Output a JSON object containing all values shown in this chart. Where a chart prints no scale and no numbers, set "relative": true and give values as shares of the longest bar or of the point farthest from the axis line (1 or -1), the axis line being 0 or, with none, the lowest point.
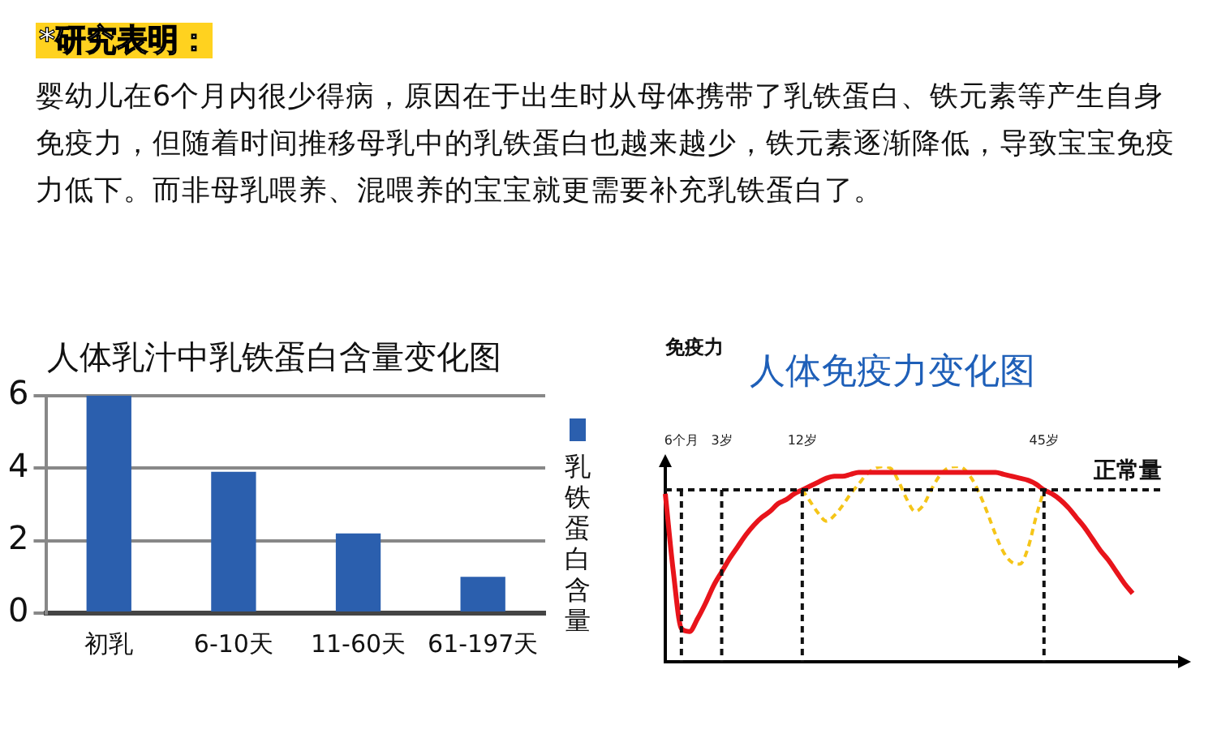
{
  "chart_data": [
    {
      "type": "other",
      "title": "*研究表明：",
      "annotations": [
        "婴幼儿在6个月内很少得病，原因在于出生时从母体携带了乳铁蛋白、铁元素等产生自身免疫力，但随着时间推移母乳中的乳铁蛋白也越来越少，铁元素逐渐降低，导致宝宝免疫力低下。而非母乳喂养、混喂养的宝宝就更需要补充乳铁蛋白了。"
      ]
    },
    {
      "type": "bar",
      "title": "人体乳汁中乳铁蛋白含量变化图",
      "categories": [
        "初乳",
        "6-10天",
        "11-60天",
        "61-197天"
      ],
      "series": [
        {
          "name": "乳铁蛋白含量",
          "color": "#2b5fae",
          "values": [
            6,
            3.9,
            2.2,
            1.0
          ]
        }
      ],
      "ylim": [
        0,
        6
      ],
      "yticks": [
        0,
        2,
        4,
        6
      ],
      "grid": "y",
      "legend": "right"
    },
    {
      "type": "line",
      "title": "人体免疫力变化图",
      "ylabel": "免疫力",
      "relative": true,
      "marker": "none",
      "categories": [
        null,
        null,
        "6个月",
        null,
        null,
        null,
        null,
        "3岁",
        null,
        null,
        null,
        null,
        null,
        null,
        null,
        null,
        null,
        "12岁",
        null,
        null,
        null,
        null,
        null,
        null,
        null,
        null,
        null,
        null,
        null,
        null,
        null,
        null,
        null,
        null,
        null,
        null,
        null,
        null,
        null,
        null,
        null,
        null,
        null,
        null,
        null,
        null,
        null,
        "45岁",
        null,
        null,
        null,
        null,
        null,
        null,
        null,
        null,
        null,
        null,
        null
      ],
      "series": [
        {
          "color": "#e8141b",
          "line_style": "solid",
          "values": [
            0.86,
            0.46,
            0.17,
            0.155,
            0.22,
            0.3,
            0.39,
            0.46,
            0.53,
            0.59,
            0.65,
            0.7,
            0.74,
            0.77,
            0.81,
            0.83,
            0.86,
            0.88,
            0.9,
            0.92,
            0.94,
            0.95,
            0.95,
            0.96,
            0.97,
            0.97,
            0.97,
            0.97,
            0.97,
            0.97,
            0.97,
            0.97,
            0.97,
            0.97,
            0.97,
            0.97,
            0.97,
            0.97,
            0.97,
            0.97,
            0.97,
            0.97,
            0.96,
            0.95,
            0.94,
            0.93,
            0.91,
            0.88,
            0.86,
            0.83,
            0.79,
            0.74,
            0.69,
            0.63,
            0.57,
            0.52,
            0.46,
            0.4,
            0.35
          ]
        },
        {
          "color": "#f5c518",
          "line_style": "dashed",
          "values": [
            null,
            null,
            null,
            null,
            null,
            null,
            null,
            null,
            null,
            null,
            null,
            null,
            null,
            null,
            null,
            null,
            null,
            0.88,
            0.82,
            0.76,
            0.72,
            0.75,
            0.8,
            0.86,
            0.91,
            0.96,
            0.99,
            1.0,
            0.99,
            0.92,
            0.83,
            0.77,
            0.8,
            0.88,
            0.95,
            0.99,
            1.0,
            0.99,
            0.94,
            0.86,
            0.76,
            0.65,
            0.56,
            0.51,
            0.5,
            0.58,
            0.74,
            0.88,
            null,
            null,
            null,
            null,
            null,
            null,
            null,
            null,
            null,
            null,
            null
          ]
        }
      ],
      "ref_lines": [
        {
          "axis": "x",
          "value": "6个月",
          "line_style": "dashed"
        },
        {
          "axis": "x",
          "value": "3岁",
          "line_style": "dashed"
        },
        {
          "axis": "x",
          "value": "12岁",
          "line_style": "dashed"
        },
        {
          "axis": "x",
          "value": "45岁",
          "line_style": "dashed"
        },
        {
          "axis": "y",
          "value": 0.88,
          "label": "正常量",
          "line_style": "dashed"
        }
      ],
      "legend": false
    }
  ]
}
